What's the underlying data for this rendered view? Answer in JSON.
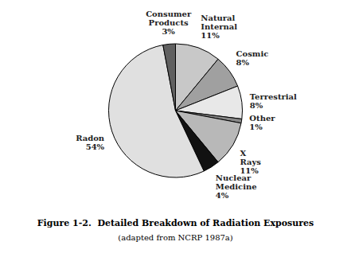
{
  "chart_data": {
    "type": "pie",
    "title": "Figure 1-2.  Detailed Breakdown of Radiation Exposures",
    "subtitle": "(adapted from NCRP 1987a)",
    "categories": [
      "Natural Internal",
      "Cosmic",
      "Terrestrial",
      "Other",
      "X Rays",
      "Nuclear Medicine",
      "Radon",
      "Consumer Products"
    ],
    "values": [
      11,
      8,
      8,
      1,
      11,
      4,
      54,
      3
    ],
    "value_labels": [
      "11%",
      "8%",
      "8%",
      "1%",
      "11%",
      "4%",
      "54%",
      "3%"
    ],
    "colors": [
      "#c8c8c8",
      "#a0a0a0",
      "#e8e8e8",
      "#888888",
      "#b8b8b8",
      "#111111",
      "#e0e0e0",
      "#606060"
    ]
  }
}
